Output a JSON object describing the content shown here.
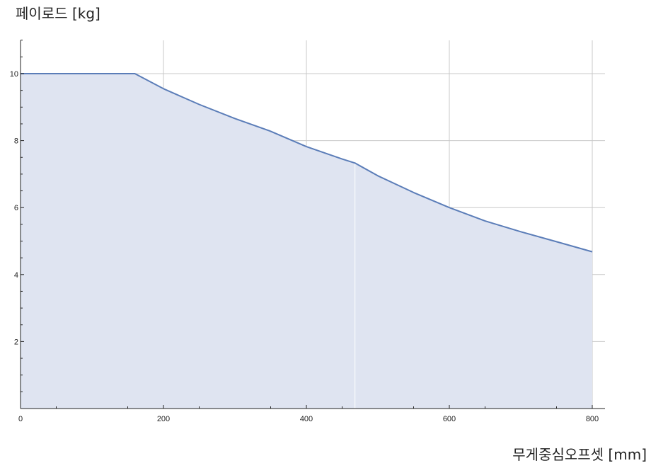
{
  "chart_data": {
    "type": "area",
    "ylabel": "페이로드 [kg]",
    "xlabel": "무게중심오프셋 [mm]",
    "xlim": [
      0,
      815
    ],
    "ylim": [
      0,
      11
    ],
    "x_ticks": [
      0,
      200,
      400,
      600,
      800
    ],
    "y_ticks": [
      2,
      4,
      6,
      8,
      10
    ],
    "x_tick_labels": [
      "0",
      "200",
      "400",
      "600",
      "800"
    ],
    "y_tick_labels": [
      "2",
      "4",
      "6",
      "8",
      "10"
    ],
    "grid": true,
    "series": [
      {
        "x": [
          0,
          160,
          200,
          250,
          300,
          350,
          400,
          450,
          468,
          500,
          550,
          600,
          650,
          700,
          750,
          800
        ],
        "y": [
          10,
          10,
          9.55,
          9.08,
          8.66,
          8.28,
          7.82,
          7.45,
          7.33,
          6.95,
          6.45,
          6.0,
          5.6,
          5.28,
          4.98,
          4.68
        ]
      }
    ],
    "colors": {
      "line": "#5b7db8",
      "fill": "#dfe4f1",
      "grid": "#c8c8c8",
      "axis": "#222222"
    }
  }
}
